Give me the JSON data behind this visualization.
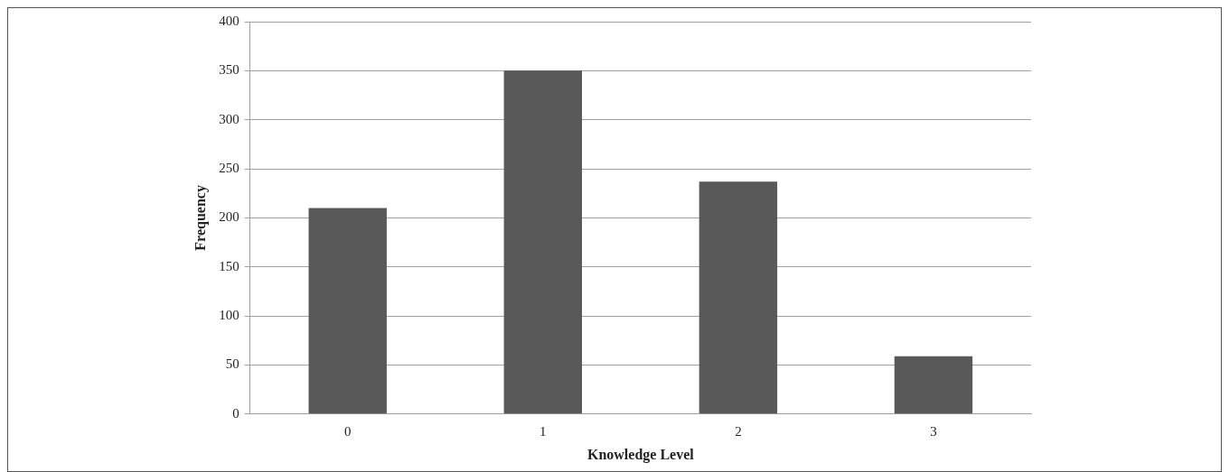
{
  "chart_data": {
    "type": "bar",
    "xlabel": "Knowledge Level",
    "ylabel": "Frequency",
    "categories": [
      "0",
      "1",
      "2",
      "3"
    ],
    "values": [
      210,
      350,
      237,
      59
    ],
    "color": "#595959",
    "ylim": [
      0,
      400
    ],
    "yticks": [
      0,
      50,
      100,
      150,
      200,
      250,
      300,
      350,
      400
    ],
    "grid": "y",
    "legend": false
  }
}
